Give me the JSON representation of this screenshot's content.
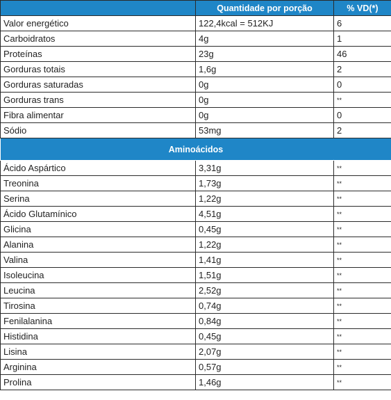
{
  "header": {
    "col1": "",
    "col2": "Quantidade por porção",
    "col3": "% VD(*)"
  },
  "nutrients": [
    {
      "name": "Valor energético",
      "qty": "122,4kcal = 512KJ",
      "vd": "6"
    },
    {
      "name": "Carboidratos",
      "qty": "4g",
      "vd": "1"
    },
    {
      "name": "Proteínas",
      "qty": "23g",
      "vd": "46"
    },
    {
      "name": "Gorduras totais",
      "qty": "1,6g",
      "vd": "2"
    },
    {
      "name": "Gorduras saturadas",
      "qty": "0g",
      "vd": "0"
    },
    {
      "name": "Gorduras trans",
      "qty": "0g",
      "vd": "**"
    },
    {
      "name": "Fibra alimentar",
      "qty": "0g",
      "vd": "0"
    },
    {
      "name": "Sódio",
      "qty": "53mg",
      "vd": "2"
    }
  ],
  "section_title": "Aminoácidos",
  "amino_acids": [
    {
      "name": "Ácido Aspártico",
      "qty": "3,31g",
      "vd": "**"
    },
    {
      "name": "Treonina",
      "qty": "1,73g",
      "vd": "**"
    },
    {
      "name": "Serina",
      "qty": "1,22g",
      "vd": "**"
    },
    {
      "name": "Ácido Glutamínico",
      "qty": "4,51g",
      "vd": "**"
    },
    {
      "name": "Glicina",
      "qty": "0,45g",
      "vd": "**"
    },
    {
      "name": "Alanina",
      "qty": "1,22g",
      "vd": "**"
    },
    {
      "name": "Valina",
      "qty": "1,41g",
      "vd": "**"
    },
    {
      "name": "Isoleucina",
      "qty": "1,51g",
      "vd": "**"
    },
    {
      "name": "Leucina",
      "qty": "2,52g",
      "vd": "**"
    },
    {
      "name": "Tirosina",
      "qty": "0,74g",
      "vd": "**"
    },
    {
      "name": "Fenilalanina",
      "qty": "0,84g",
      "vd": "**"
    },
    {
      "name": "Histidina",
      "qty": "0,45g",
      "vd": "**"
    },
    {
      "name": "Lisina",
      "qty": "2,07g",
      "vd": "**"
    },
    {
      "name": "Arginina",
      "qty": "0,57g",
      "vd": "**"
    },
    {
      "name": "Prolina",
      "qty": "1,46g",
      "vd": "**"
    }
  ],
  "colors": {
    "header_bg": "#1f86c7",
    "header_text": "#ffffff",
    "border": "#2a2a2a",
    "text": "#222222"
  }
}
